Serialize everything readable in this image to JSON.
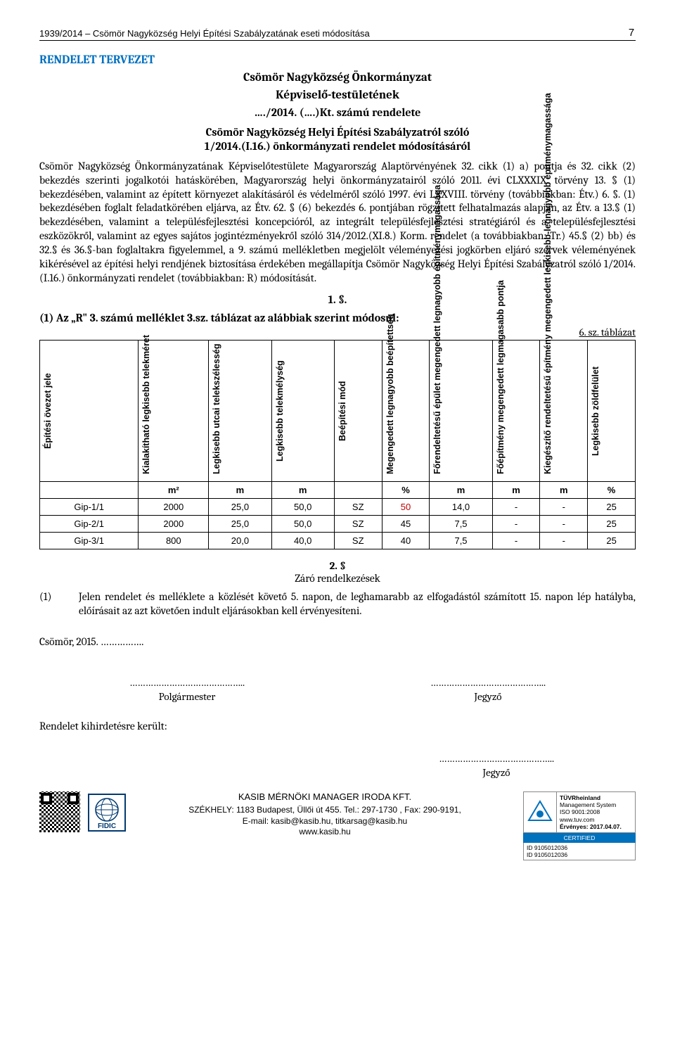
{
  "header": {
    "doc_ref": "1939/2014 – Csömör Nagyközség Helyi Építési Szabályzatának eseti módosítása",
    "page_number": "7"
  },
  "title_block": {
    "section": "RENDELET TERVEZET",
    "org1": "Csömör Nagyközség Önkormányzat",
    "org2": "Képviselő-testületének",
    "decree": "…./2014. (….)Kt. számú rendelete",
    "subject1": "Csömör Nagyközség Helyi Építési Szabályzatról szóló",
    "subject2": "1/2014.(I.16.) önkormányzati rendelet módosításáról"
  },
  "preamble": "Csömör Nagyközség Önkormányzatának Képviselőtestülete Magyarország Alaptörvényének 32. cikk (1) a) pontja és 32. cikk (2) bekezdés szerinti jogalkotói hatáskörében, Magyarország helyi önkormányzatairól szóló 2011. évi CLXXXIX. törvény 13. § (1) bekezdésében, valamint az épített környezet alakításáról és védelméről szóló 1997. évi LXXVIII. törvény (továbbiakban: Étv.) 6. §. (1) bekezdésében foglalt feladatkörében eljárva, az Étv. 62. § (6) bekezdés 6. pontjában rögzített felhatalmazás alapján, az Étv. a 13.§ (1) bekezdésében, valamint a településfejlesztési koncepcióról, az integrált településfejlesztési stratégiáról és a településfejlesztési eszközökről, valamint az egyes sajátos jogintézményekről szóló 314/2012.(XI.8.) Korm. rendelet (a továbbiakban: Tr.) 45.§ (2) bb) és 32.§ és 36.§-ban foglaltakra figyelemmel, a 9. számú mellékletben megjelölt véleményezési jogkörben eljáró szervek véleményének kikérésével az építési helyi rendjének biztosítása érdekében megállapítja Csömör Nagyközség Helyi Építési Szabályzatról szóló 1/2014.(I.16.) önkormányzati rendelet (továbbiakban: R) módosítását.",
  "paragraph1_num": "1. §.",
  "sub_head": "(1) Az „R\" 3. számú melléklet 3.sz. táblázat az alábbiak szerint módosul:",
  "table_ref": "6. sz. táblázat",
  "table": {
    "headers": [
      "Építési övezet jele",
      "Kialakítható legkisebb telekméret",
      "Legkisebb utcai telekszélesség",
      "Legkisebb telekmélység",
      "Beépítési mód",
      "Megengedett legnagyobb beépítettség",
      "Főrendeltetésű épület megengedett legnagyobb építménymagassága",
      "Főépítmény megengedett legmagasabb pontja",
      "Kiegészítő rendeltetésű építmény megengedett legkisebb-legnagyobb építménymagassága",
      "Legkisebb zöldfelület"
    ],
    "units": [
      "",
      "m²",
      "m",
      "m",
      "",
      "%",
      "m",
      "m",
      "m",
      "%"
    ],
    "rows": [
      [
        "Gip-1/1",
        "2000",
        "25,0",
        "50,0",
        "SZ",
        "50",
        "14,0",
        "-",
        "-",
        "25"
      ],
      [
        "Gip-2/1",
        "2000",
        "25,0",
        "50,0",
        "SZ",
        "45",
        "7,5",
        "-",
        "-",
        "25"
      ],
      [
        "Gip-3/1",
        "800",
        "20,0",
        "40,0",
        "SZ",
        "40",
        "7,5",
        "-",
        "-",
        "25"
      ]
    ],
    "highlight_cell": {
      "row": 0,
      "col": 5
    }
  },
  "closing": {
    "num": "2. §",
    "title": "Záró rendelkezések"
  },
  "clause1": {
    "num": "(1)",
    "text": "Jelen rendelet és melléklete a közlését követő 5. napon, de leghamarabb az elfogadástól számított 15. napon lép hatályba, előírásait az azt követően indult eljárásokban kell érvényesíteni."
  },
  "date_line": "Csömör, 2015. …………….",
  "sig": {
    "left_line": "……………………………………..",
    "left_role": "Polgármester",
    "right_line": "……………………………………..",
    "right_role": "Jegyző"
  },
  "publish_line": "Rendelet kihirdetésre került:",
  "sig2": {
    "line": "……………………………………..",
    "role": "Jegyző"
  },
  "footer": {
    "firm": "KASIB MÉRNÖKI MANAGER IRODA KFT.",
    "addr": "SZÉKHELY: 1183 Budapest, Üllői út 455. Tel.: 297-1730 , Fax: 290-9191,",
    "email": "E-mail: kasib@kasib.hu, titkarsag@kasib.hu",
    "web": "www.kasib.hu",
    "fidic": "FIDIC",
    "cert": {
      "brand": "TÜVRheinland",
      "sys": "Management System",
      "iso": "ISO 9001:2008",
      "site": "www.tuv.com",
      "valid": "Érvényes: 2017.04.07.",
      "certified": "CERTIFIED",
      "id1": "ID 9105012036",
      "id2": "ID 9105012036"
    }
  }
}
